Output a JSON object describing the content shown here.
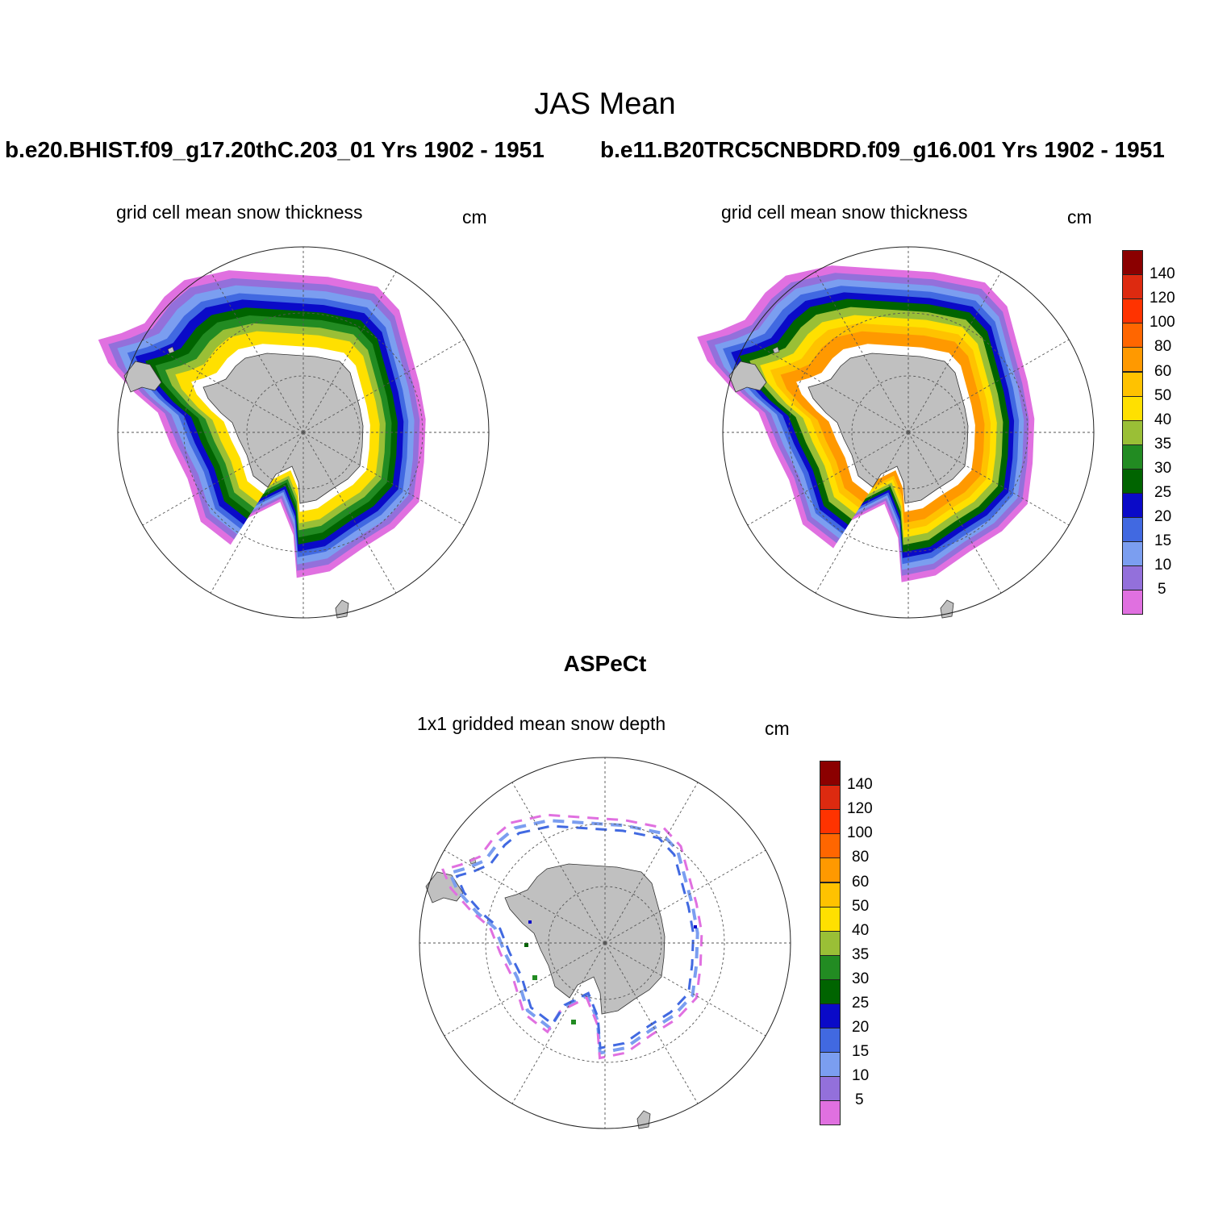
{
  "figure": {
    "title": "JAS Mean",
    "panels": [
      {
        "id": "left",
        "case_title": "b.e20.BHIST.f09_g17.20thC.203_01  Yrs 1902 - 1951",
        "variable_label": "grid cell mean snow thickness",
        "units": "cm"
      },
      {
        "id": "right",
        "case_title": "b.e11.B20TRC5CNBDRD.f09_g16.001  Yrs 1902 - 1951",
        "variable_label": "grid cell mean snow thickness",
        "units": "cm"
      }
    ],
    "obs_panel": {
      "title": "ASPeCt",
      "variable_label": "1x1 gridded mean snow depth",
      "units": "cm"
    }
  },
  "colorbar": {
    "levels": [
      "5",
      "10",
      "15",
      "20",
      "25",
      "30",
      "35",
      "40",
      "50",
      "60",
      "80",
      "100",
      "120",
      "140"
    ],
    "colors": [
      "#e070e0",
      "#9370db",
      "#7b9ef0",
      "#4169e1",
      "#0a0ac8",
      "#006400",
      "#228b22",
      "#9abf36",
      "#ffe000",
      "#ffc200",
      "#ff9900",
      "#ff6600",
      "#ff3300",
      "#dd2a10",
      "#8b0000"
    ]
  },
  "map_style": {
    "land_color": "#c0c0c0",
    "grid_color": "#555555",
    "ocean_color": "#ffffff"
  }
}
